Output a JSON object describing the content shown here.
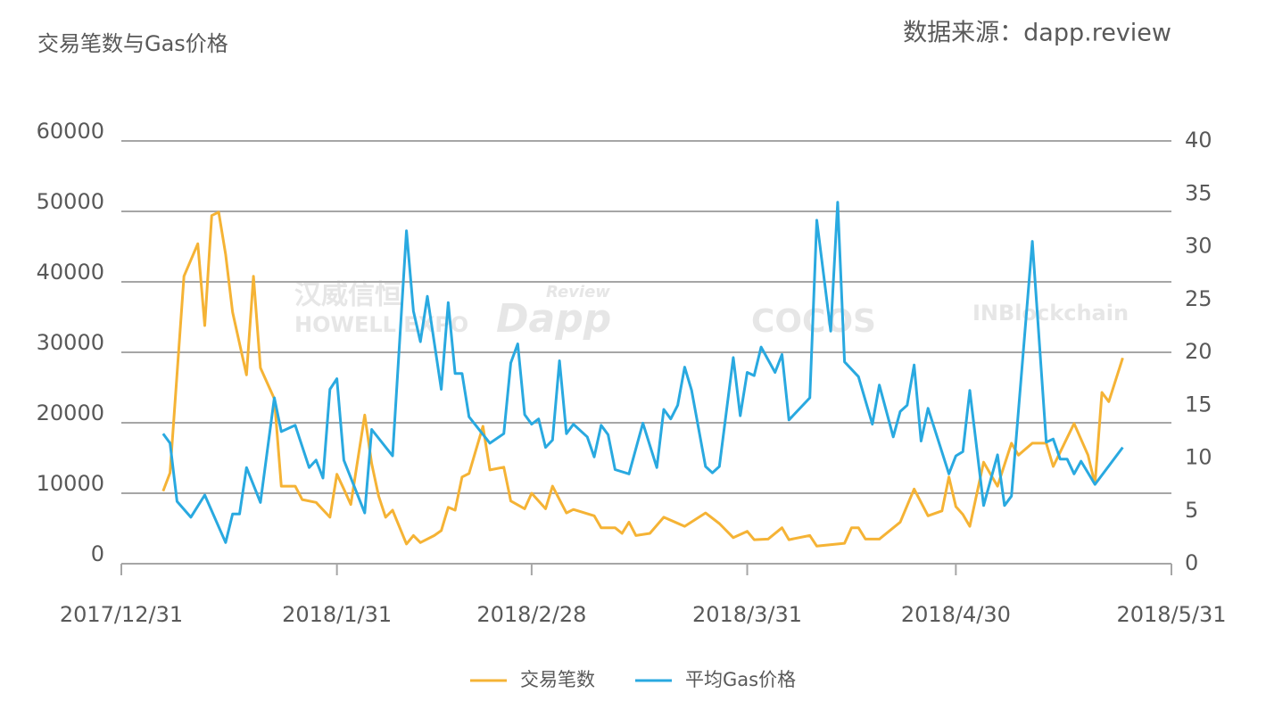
{
  "chart_data": {
    "type": "line",
    "title": "交易笔数与Gas价格",
    "source": "数据来源：dapp.review",
    "watermarks": [
      "汉威信恒",
      "HOWELL EXPO",
      "Review",
      "Dapp",
      "COCOS",
      "INBlockchain"
    ],
    "xlim": [
      "2017/12/31",
      "2018/5/31"
    ],
    "xticks": [
      "2017/12/31",
      "2018/1/31",
      "2018/2/28",
      "2018/3/31",
      "2018/4/30",
      "2018/5/31"
    ],
    "ylim": [
      0,
      60000
    ],
    "yticks": [
      0,
      10000,
      20000,
      30000,
      40000,
      50000,
      60000
    ],
    "y2lim": [
      0,
      40
    ],
    "y2ticks": [
      0,
      5,
      10,
      15,
      20,
      25,
      30,
      35,
      40
    ],
    "grid": true,
    "series": [
      {
        "name": "交易笔数",
        "color": "#f5b335",
        "x": [
          "2018/1/6",
          "2018/1/7",
          "2018/1/9",
          "2018/1/11",
          "2018/1/12",
          "2018/1/13",
          "2018/1/14",
          "2018/1/15",
          "2018/1/16",
          "2018/1/18",
          "2018/1/19",
          "2018/1/20",
          "2018/1/21",
          "2018/1/22",
          "2018/1/23",
          "2018/1/25",
          "2018/1/26",
          "2018/1/28",
          "2018/1/30",
          "2018/1/31",
          "2018/2/1",
          "2018/2/2",
          "2018/2/4",
          "2018/2/5",
          "2018/2/6",
          "2018/2/7",
          "2018/2/8",
          "2018/2/10",
          "2018/2/11",
          "2018/2/12",
          "2018/2/14",
          "2018/2/15",
          "2018/2/16",
          "2018/2/17",
          "2018/2/18",
          "2018/2/19",
          "2018/2/21",
          "2018/2/22",
          "2018/2/24",
          "2018/2/25",
          "2018/2/27",
          "2018/2/28",
          "2018/3/2",
          "2018/3/3",
          "2018/3/5",
          "2018/3/6",
          "2018/3/9",
          "2018/3/10",
          "2018/3/12",
          "2018/3/13",
          "2018/3/14",
          "2018/3/15",
          "2018/3/17",
          "2018/3/19",
          "2018/3/22",
          "2018/3/25",
          "2018/3/27",
          "2018/3/29",
          "2018/3/31",
          "2018/4/1",
          "2018/4/3",
          "2018/4/5",
          "2018/4/6",
          "2018/4/9",
          "2018/4/10",
          "2018/4/14",
          "2018/4/15",
          "2018/4/16",
          "2018/4/17",
          "2018/4/19",
          "2018/4/22",
          "2018/4/24",
          "2018/4/26",
          "2018/4/28",
          "2018/4/29",
          "2018/4/30",
          "2018/5/1",
          "2018/5/2",
          "2018/5/4",
          "2018/5/6",
          "2018/5/8",
          "2018/5/9",
          "2018/5/11",
          "2018/5/13",
          "2018/5/14",
          "2018/5/17",
          "2018/5/19",
          "2018/5/20",
          "2018/5/21",
          "2018/5/22",
          "2018/5/24"
        ],
        "values": [
          10300,
          12900,
          40800,
          45400,
          33800,
          49400,
          49900,
          43900,
          35700,
          26800,
          40800,
          27800,
          25600,
          23400,
          11000,
          11000,
          9100,
          8700,
          6600,
          12700,
          10600,
          8400,
          21100,
          14200,
          9600,
          6600,
          7600,
          2800,
          4000,
          3000,
          4000,
          4700,
          8000,
          7600,
          12300,
          12800,
          19500,
          13300,
          13700,
          8900,
          7800,
          10000,
          7800,
          11000,
          7200,
          7700,
          6800,
          5100,
          5100,
          4300,
          5900,
          4000,
          4300,
          6600,
          5300,
          7200,
          5700,
          3700,
          4600,
          3400,
          3500,
          5100,
          3400,
          4000,
          2500,
          2900,
          5100,
          5100,
          3500,
          3500,
          5900,
          10600,
          6800,
          7500,
          12300,
          8100,
          7000,
          5300,
          14400,
          11000,
          17100,
          15400,
          17100,
          17100,
          13800,
          19900,
          15400,
          11300,
          24300,
          23000,
          29200
        ]
      },
      {
        "name": "平均Gas价格",
        "color": "#29a9e0",
        "axis": "y2",
        "x": [
          "2018/1/6",
          "2018/1/7",
          "2018/1/8",
          "2018/1/10",
          "2018/1/12",
          "2018/1/15",
          "2018/1/16",
          "2018/1/17",
          "2018/1/18",
          "2018/1/20",
          "2018/1/22",
          "2018/1/23",
          "2018/1/25",
          "2018/1/27",
          "2018/1/28",
          "2018/1/29",
          "2018/1/30",
          "2018/1/31",
          "2018/2/1",
          "2018/2/4",
          "2018/2/5",
          "2018/2/8",
          "2018/2/10",
          "2018/2/11",
          "2018/2/12",
          "2018/2/13",
          "2018/2/15",
          "2018/2/16",
          "2018/2/17",
          "2018/2/18",
          "2018/2/19",
          "2018/2/22",
          "2018/2/24",
          "2018/2/25",
          "2018/2/26",
          "2018/2/27",
          "2018/2/28",
          "2018/3/1",
          "2018/3/2",
          "2018/3/3",
          "2018/3/4",
          "2018/3/5",
          "2018/3/6",
          "2018/3/8",
          "2018/3/9",
          "2018/3/10",
          "2018/3/11",
          "2018/3/12",
          "2018/3/14",
          "2018/3/16",
          "2018/3/18",
          "2018/3/19",
          "2018/3/20",
          "2018/3/21",
          "2018/3/22",
          "2018/3/23",
          "2018/3/25",
          "2018/3/26",
          "2018/3/27",
          "2018/3/29",
          "2018/3/30",
          "2018/3/31",
          "2018/4/1",
          "2018/4/2",
          "2018/4/4",
          "2018/4/5",
          "2018/4/6",
          "2018/4/9",
          "2018/4/10",
          "2018/4/12",
          "2018/4/13",
          "2018/4/14",
          "2018/4/16",
          "2018/4/18",
          "2018/4/19",
          "2018/4/21",
          "2018/4/22",
          "2018/4/23",
          "2018/4/24",
          "2018/4/25",
          "2018/4/26",
          "2018/4/29",
          "2018/4/30",
          "2018/5/1",
          "2018/5/2",
          "2018/5/4",
          "2018/5/6",
          "2018/5/7",
          "2018/5/8",
          "2018/5/11",
          "2018/5/13",
          "2018/5/14",
          "2018/5/15",
          "2018/5/16",
          "2018/5/17",
          "2018/5/18",
          "2018/5/20",
          "2018/5/24"
        ],
        "values": [
          12.3,
          11.4,
          5.9,
          4.4,
          6.5,
          2.0,
          4.7,
          4.7,
          9.1,
          5.8,
          15.7,
          12.5,
          13.1,
          9.1,
          9.8,
          8.1,
          16.5,
          17.5,
          9.8,
          4.8,
          12.7,
          10.2,
          31.5,
          23.9,
          21.0,
          25.3,
          16.5,
          24.7,
          18.0,
          18.0,
          13.9,
          11.4,
          12.3,
          19.0,
          20.8,
          14.1,
          13.2,
          13.7,
          11.0,
          11.7,
          19.2,
          12.3,
          13.2,
          12.0,
          10.1,
          13.1,
          12.2,
          8.9,
          8.5,
          13.3,
          9.1,
          14.6,
          13.7,
          15.0,
          18.6,
          16.4,
          9.2,
          8.6,
          9.2,
          19.5,
          14.0,
          18.1,
          17.8,
          20.5,
          18.1,
          19.8,
          13.6,
          15.7,
          32.5,
          22.0,
          34.2,
          19.1,
          17.7,
          13.2,
          16.9,
          12.0,
          14.4,
          15.0,
          18.8,
          11.6,
          14.7,
          8.5,
          10.2,
          10.6,
          16.4,
          5.5,
          10.3,
          5.5,
          6.4,
          30.5,
          11.5,
          11.8,
          9.9,
          9.9,
          8.5,
          9.7,
          7.5,
          11.0
        ]
      }
    ]
  }
}
